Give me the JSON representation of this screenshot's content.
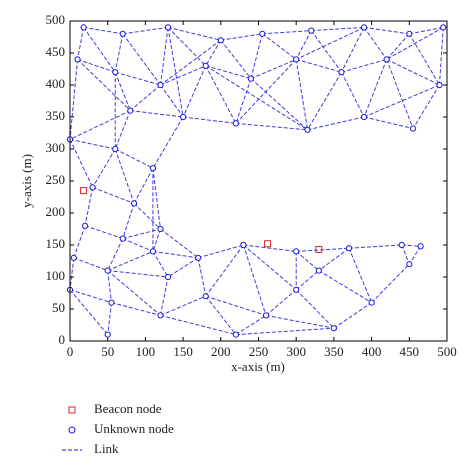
{
  "chart_data": {
    "type": "network",
    "xlabel": "x-axis (m)",
    "ylabel": "y-axis (m)",
    "xlim": [
      0,
      500
    ],
    "ylim": [
      0,
      500
    ],
    "xticks": [
      0,
      50,
      100,
      150,
      200,
      250,
      300,
      350,
      400,
      450,
      500
    ],
    "yticks": [
      0,
      50,
      100,
      150,
      200,
      250,
      300,
      350,
      400,
      450,
      500
    ],
    "series": [
      {
        "name": "Beacon node",
        "color": "#d62728",
        "marker": "square",
        "x": [
          18,
          262,
          330
        ],
        "y": [
          235,
          152,
          143
        ]
      },
      {
        "name": "Unknown node",
        "color": "#1a1adb",
        "marker": "circle",
        "x": [
          18,
          70,
          130,
          200,
          255,
          320,
          390,
          450,
          495,
          10,
          60,
          120,
          180,
          240,
          300,
          360,
          420,
          490,
          80,
          150,
          220,
          315,
          390,
          455,
          0,
          60,
          110,
          30,
          85,
          20,
          70,
          120,
          5,
          50,
          110,
          170,
          230,
          300,
          370,
          440,
          465,
          0,
          55,
          120,
          180,
          220,
          260,
          300,
          350,
          400,
          450,
          50,
          130,
          330
        ],
        "y": [
          490,
          480,
          490,
          470,
          480,
          485,
          490,
          480,
          490,
          440,
          420,
          400,
          430,
          410,
          440,
          420,
          440,
          400,
          360,
          350,
          340,
          330,
          350,
          332,
          315,
          300,
          270,
          240,
          215,
          180,
          160,
          175,
          130,
          110,
          140,
          130,
          150,
          140,
          145,
          150,
          148,
          80,
          60,
          40,
          70,
          10,
          40,
          80,
          20,
          60,
          120,
          10,
          100,
          110
        ]
      },
      {
        "name": "Link",
        "color": "#1a1adb",
        "marker": "dash",
        "links": [
          [
            0,
            1
          ],
          [
            0,
            9
          ],
          [
            0,
            10
          ],
          [
            1,
            2
          ],
          [
            1,
            10
          ],
          [
            1,
            11
          ],
          [
            2,
            3
          ],
          [
            2,
            11
          ],
          [
            2,
            12
          ],
          [
            3,
            4
          ],
          [
            3,
            12
          ],
          [
            3,
            13
          ],
          [
            4,
            5
          ],
          [
            4,
            13
          ],
          [
            4,
            14
          ],
          [
            5,
            6
          ],
          [
            5,
            14
          ],
          [
            5,
            15
          ],
          [
            6,
            7
          ],
          [
            6,
            15
          ],
          [
            6,
            16
          ],
          [
            7,
            8
          ],
          [
            7,
            16
          ],
          [
            7,
            17
          ],
          [
            8,
            17
          ],
          [
            8,
            16
          ],
          [
            9,
            10
          ],
          [
            9,
            18
          ],
          [
            9,
            24
          ],
          [
            10,
            11
          ],
          [
            10,
            18
          ],
          [
            11,
            12
          ],
          [
            11,
            19
          ],
          [
            11,
            18
          ],
          [
            12,
            13
          ],
          [
            12,
            19
          ],
          [
            12,
            20
          ],
          [
            13,
            14
          ],
          [
            13,
            20
          ],
          [
            13,
            21
          ],
          [
            14,
            15
          ],
          [
            14,
            21
          ],
          [
            15,
            16
          ],
          [
            15,
            22
          ],
          [
            15,
            21
          ],
          [
            16,
            17
          ],
          [
            16,
            22
          ],
          [
            16,
            23
          ],
          [
            17,
            23
          ],
          [
            18,
            19
          ],
          [
            18,
            25
          ],
          [
            18,
            24
          ],
          [
            19,
            20
          ],
          [
            19,
            26
          ],
          [
            20,
            21
          ],
          [
            21,
            22
          ],
          [
            22,
            23
          ],
          [
            24,
            25
          ],
          [
            24,
            27
          ],
          [
            25,
            26
          ],
          [
            25,
            27
          ],
          [
            25,
            28
          ],
          [
            26,
            28
          ],
          [
            26,
            31
          ],
          [
            27,
            28
          ],
          [
            27,
            29
          ],
          [
            28,
            30
          ],
          [
            28,
            31
          ],
          [
            29,
            30
          ],
          [
            29,
            32
          ],
          [
            30,
            31
          ],
          [
            30,
            33
          ],
          [
            30,
            34
          ],
          [
            31,
            34
          ],
          [
            31,
            35
          ],
          [
            32,
            33
          ],
          [
            32,
            41
          ],
          [
            33,
            34
          ],
          [
            33,
            42
          ],
          [
            33,
            52
          ],
          [
            34,
            35
          ],
          [
            34,
            52
          ],
          [
            35,
            36
          ],
          [
            35,
            44
          ],
          [
            35,
            52
          ],
          [
            36,
            37
          ],
          [
            36,
            44
          ],
          [
            36,
            47
          ],
          [
            37,
            38
          ],
          [
            37,
            47
          ],
          [
            37,
            53
          ],
          [
            38,
            39
          ],
          [
            38,
            53
          ],
          [
            38,
            49
          ],
          [
            39,
            40
          ],
          [
            39,
            50
          ],
          [
            40,
            50
          ],
          [
            41,
            42
          ],
          [
            41,
            51
          ],
          [
            42,
            43
          ],
          [
            42,
            51
          ],
          [
            43,
            44
          ],
          [
            43,
            52
          ],
          [
            43,
            45
          ],
          [
            44,
            45
          ],
          [
            44,
            46
          ],
          [
            45,
            46
          ],
          [
            46,
            47
          ],
          [
            46,
            48
          ],
          [
            47,
            48
          ],
          [
            47,
            53
          ],
          [
            48,
            49
          ],
          [
            49,
            50
          ],
          [
            53,
            49
          ],
          [
            2,
            19
          ],
          [
            14,
            20
          ],
          [
            3,
            11
          ],
          [
            6,
            14
          ],
          [
            10,
            25
          ],
          [
            26,
            34
          ],
          [
            33,
            43
          ],
          [
            45,
            48
          ],
          [
            36,
            46
          ],
          [
            12,
            21
          ],
          [
            17,
            22
          ]
        ]
      }
    ]
  }
}
